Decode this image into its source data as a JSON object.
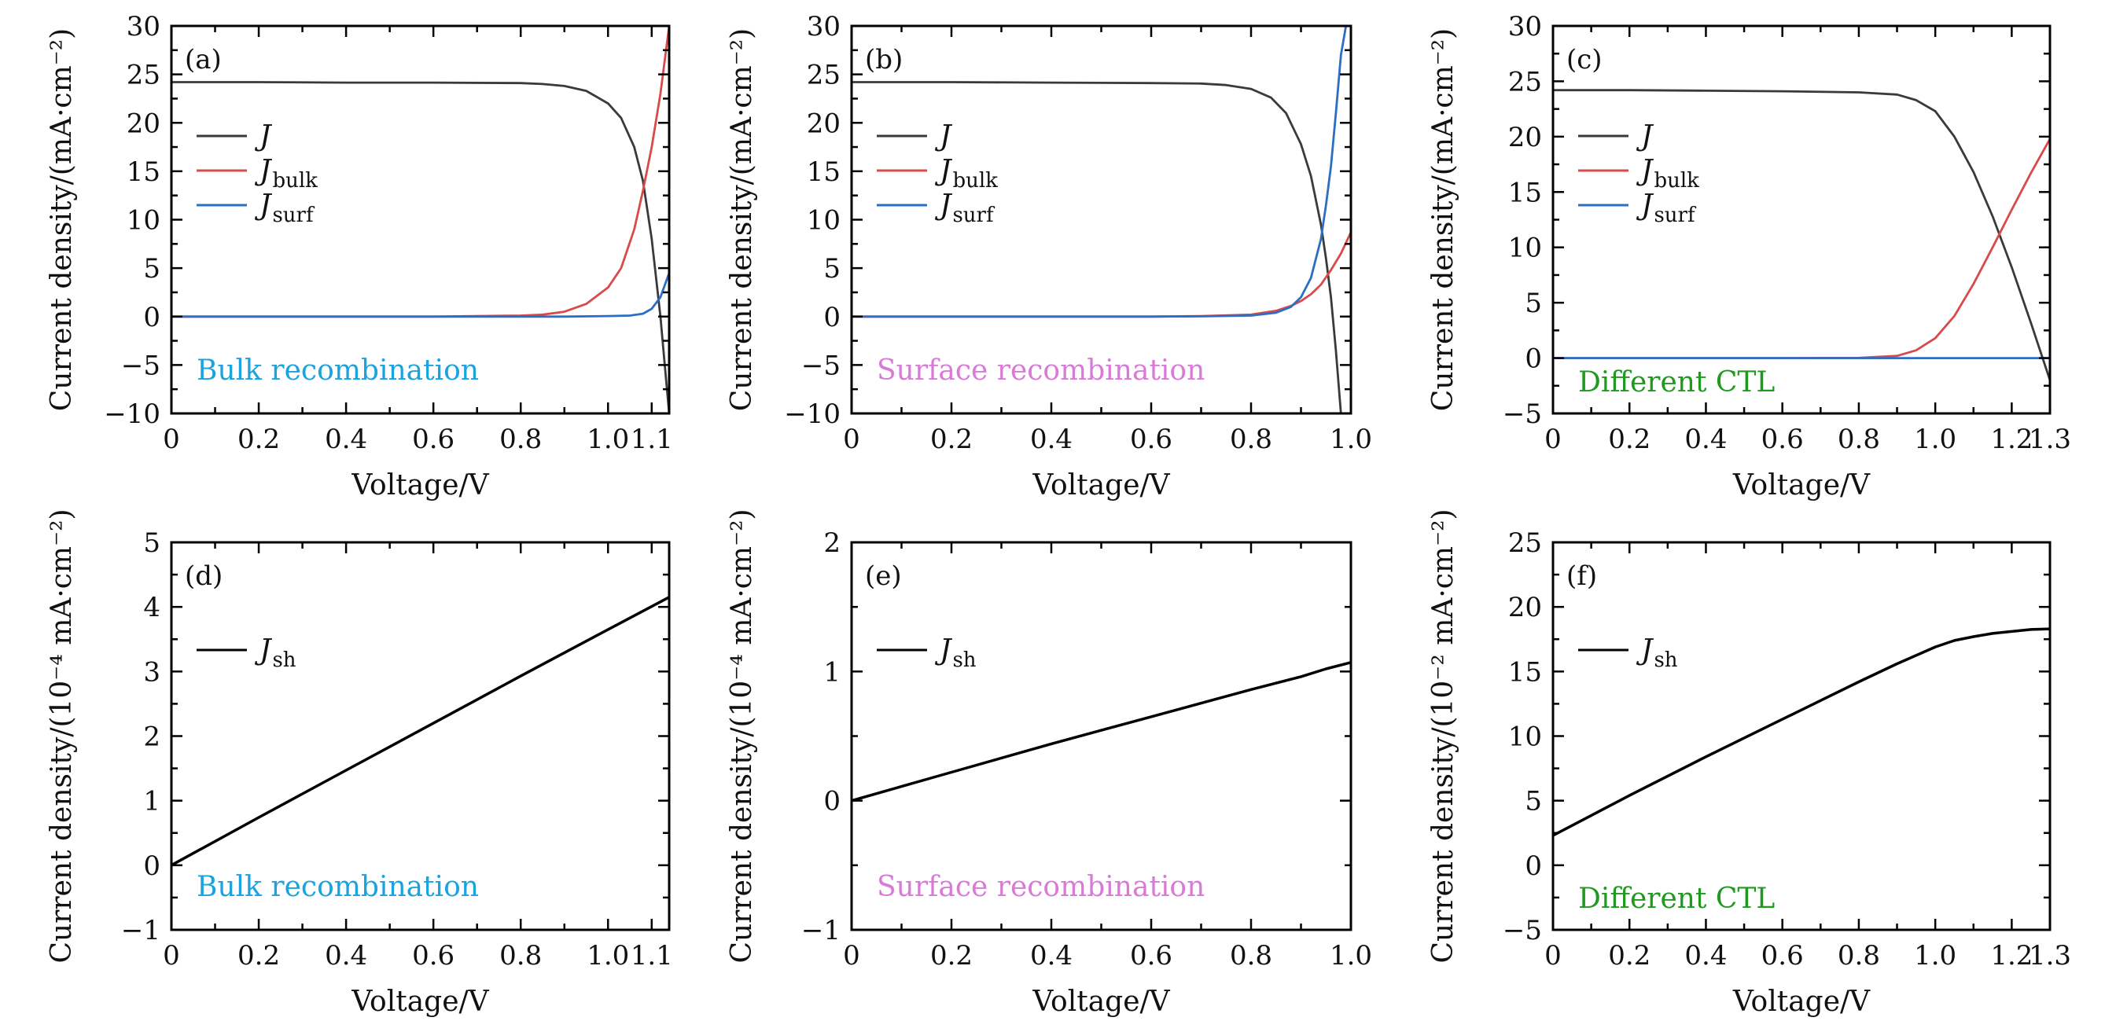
{
  "colors": {
    "J": "#3a3a3a",
    "J_bulk": "#d94a4a",
    "J_surf": "#2b6fc4",
    "J_sh": "#000000",
    "note_bulk": "#1aa3de",
    "note_surf": "#d97ad9",
    "note_ctl": "#1f9a1f"
  },
  "chart_data": [
    {
      "id": "a",
      "tag": "(a)",
      "type": "line",
      "xlabel": "Voltage/V",
      "ylabel": "Current density/(mA·cm⁻²)",
      "xlim": [
        0,
        1.14
      ],
      "ylim": [
        -10,
        30
      ],
      "xticks": [
        0,
        0.2,
        0.4,
        0.6,
        0.8,
        1.0,
        1.1
      ],
      "xtick_labels": [
        "0",
        "0.2",
        "0.4",
        "0.6",
        "0.8",
        "1.0",
        "1.1"
      ],
      "yticks": [
        -10,
        -5,
        0,
        5,
        10,
        15,
        20,
        25,
        30
      ],
      "ytick_labels": [
        "−10",
        "−5",
        "0",
        "5",
        "10",
        "15",
        "20",
        "25",
        "30"
      ],
      "note": "Bulk recombination",
      "note_color_key": "note_bulk",
      "legend": [
        {
          "main": "J",
          "sub": "",
          "color_key": "J"
        },
        {
          "main": "J",
          "sub": "bulk",
          "color_key": "J_bulk"
        },
        {
          "main": "J",
          "sub": "surf",
          "color_key": "J_surf"
        }
      ],
      "series": [
        {
          "name": "J",
          "color_key": "J",
          "x": [
            0,
            0.2,
            0.4,
            0.6,
            0.8,
            0.85,
            0.9,
            0.95,
            1.0,
            1.03,
            1.06,
            1.08,
            1.1,
            1.12,
            1.13,
            1.14
          ],
          "y": [
            24.2,
            24.2,
            24.15,
            24.15,
            24.1,
            24.0,
            23.8,
            23.3,
            22.0,
            20.5,
            17.5,
            14.0,
            8.0,
            0.0,
            -5.0,
            -10.0
          ]
        },
        {
          "name": "J_bulk",
          "color_key": "J_bulk",
          "x": [
            0,
            0.2,
            0.4,
            0.6,
            0.8,
            0.85,
            0.9,
            0.95,
            1.0,
            1.03,
            1.06,
            1.08,
            1.1,
            1.12,
            1.14
          ],
          "y": [
            0,
            0,
            0,
            0,
            0.1,
            0.2,
            0.5,
            1.3,
            3.0,
            5.0,
            9.0,
            13.0,
            17.5,
            23.0,
            30.0
          ]
        },
        {
          "name": "J_surf",
          "color_key": "J_surf",
          "x": [
            0,
            0.2,
            0.4,
            0.6,
            0.8,
            0.9,
            1.0,
            1.05,
            1.08,
            1.1,
            1.12,
            1.14
          ],
          "y": [
            0,
            0,
            0,
            0,
            0,
            0,
            0.05,
            0.1,
            0.3,
            0.8,
            2.0,
            4.5
          ]
        }
      ]
    },
    {
      "id": "b",
      "tag": "(b)",
      "type": "line",
      "xlabel": "Voltage/V",
      "ylabel": "Current density/(mA·cm⁻²)",
      "xlim": [
        0,
        1.0
      ],
      "ylim": [
        -10,
        30
      ],
      "xticks": [
        0,
        0.2,
        0.4,
        0.6,
        0.8,
        1.0
      ],
      "xtick_labels": [
        "0",
        "0.2",
        "0.4",
        "0.6",
        "0.8",
        "1.0"
      ],
      "yticks": [
        -10,
        -5,
        0,
        5,
        10,
        15,
        20,
        25,
        30
      ],
      "ytick_labels": [
        "−10",
        "−5",
        "0",
        "5",
        "10",
        "15",
        "20",
        "25",
        "30"
      ],
      "note": "Surface recombination",
      "note_color_key": "note_surf",
      "legend": [
        {
          "main": "J",
          "sub": "",
          "color_key": "J"
        },
        {
          "main": "J",
          "sub": "bulk",
          "color_key": "J_bulk"
        },
        {
          "main": "J",
          "sub": "surf",
          "color_key": "J_surf"
        }
      ],
      "series": [
        {
          "name": "J",
          "color_key": "J",
          "x": [
            0,
            0.2,
            0.4,
            0.6,
            0.7,
            0.75,
            0.8,
            0.84,
            0.87,
            0.9,
            0.92,
            0.94,
            0.95,
            0.96,
            0.97,
            0.98
          ],
          "y": [
            24.2,
            24.2,
            24.15,
            24.1,
            24.05,
            23.9,
            23.5,
            22.6,
            21.0,
            17.8,
            14.5,
            9.5,
            6.0,
            2.0,
            -3.5,
            -10.0
          ]
        },
        {
          "name": "J_bulk",
          "color_key": "J_bulk",
          "x": [
            0,
            0.2,
            0.4,
            0.6,
            0.7,
            0.8,
            0.85,
            0.88,
            0.9,
            0.92,
            0.94,
            0.96,
            0.98,
            1.0
          ],
          "y": [
            0,
            0,
            0,
            0,
            0.05,
            0.2,
            0.6,
            1.1,
            1.6,
            2.3,
            3.3,
            4.8,
            6.5,
            8.7
          ]
        },
        {
          "name": "J_surf",
          "color_key": "J_surf",
          "x": [
            0,
            0.2,
            0.4,
            0.6,
            0.7,
            0.8,
            0.85,
            0.88,
            0.9,
            0.92,
            0.94,
            0.95,
            0.96,
            0.97,
            0.98,
            0.99
          ],
          "y": [
            0,
            0,
            0,
            0,
            0.02,
            0.1,
            0.4,
            1.0,
            2.0,
            4.0,
            8.0,
            11.5,
            15.5,
            21.0,
            27.0,
            30.0
          ]
        }
      ]
    },
    {
      "id": "c",
      "tag": "(c)",
      "type": "line",
      "xlabel": "Voltage/V",
      "ylabel": "Current density/(mA·cm⁻²)",
      "xlim": [
        0,
        1.3
      ],
      "ylim": [
        -5,
        30
      ],
      "xticks": [
        0,
        0.2,
        0.4,
        0.6,
        0.8,
        1.0,
        1.2,
        1.3
      ],
      "xtick_labels": [
        "0",
        "0.2",
        "0.4",
        "0.6",
        "0.8",
        "1.0",
        "1.2",
        "1.3"
      ],
      "yticks": [
        -5,
        0,
        5,
        10,
        15,
        20,
        25,
        30
      ],
      "ytick_labels": [
        "−5",
        "0",
        "5",
        "10",
        "15",
        "20",
        "25",
        "30"
      ],
      "note": "Different CTL",
      "note_color_key": "note_ctl",
      "legend": [
        {
          "main": "J",
          "sub": "",
          "color_key": "J"
        },
        {
          "main": "J",
          "sub": "bulk",
          "color_key": "J_bulk"
        },
        {
          "main": "J",
          "sub": "surf",
          "color_key": "J_surf"
        }
      ],
      "series": [
        {
          "name": "J",
          "color_key": "J",
          "x": [
            0,
            0.2,
            0.4,
            0.6,
            0.8,
            0.9,
            0.95,
            1.0,
            1.05,
            1.1,
            1.15,
            1.2,
            1.25,
            1.3
          ],
          "y": [
            24.2,
            24.2,
            24.15,
            24.1,
            24.0,
            23.8,
            23.3,
            22.3,
            20.0,
            16.8,
            12.8,
            8.2,
            3.2,
            -2.0
          ]
        },
        {
          "name": "J_bulk",
          "color_key": "J_bulk",
          "x": [
            0,
            0.2,
            0.4,
            0.6,
            0.8,
            0.9,
            0.95,
            1.0,
            1.05,
            1.1,
            1.15,
            1.2,
            1.25,
            1.3
          ],
          "y": [
            0,
            0,
            0,
            0,
            0.02,
            0.2,
            0.7,
            1.8,
            3.8,
            6.7,
            10.0,
            13.4,
            16.7,
            19.8
          ]
        },
        {
          "name": "J_surf",
          "color_key": "J_surf",
          "x": [
            0,
            0.5,
            1.0,
            1.3
          ],
          "y": [
            0,
            0,
            0,
            0
          ]
        }
      ]
    },
    {
      "id": "d",
      "tag": "(d)",
      "type": "line",
      "xlabel": "Voltage/V",
      "ylabel": "Current density/(10⁻⁴ mA·cm⁻²)",
      "xlim": [
        0,
        1.14
      ],
      "ylim": [
        -1,
        5
      ],
      "xticks": [
        0,
        0.2,
        0.4,
        0.6,
        0.8,
        1.0,
        1.1
      ],
      "xtick_labels": [
        "0",
        "0.2",
        "0.4",
        "0.6",
        "0.8",
        "1.0",
        "1.1"
      ],
      "yticks": [
        -1,
        0,
        1,
        2,
        3,
        4,
        5
      ],
      "ytick_labels": [
        "−1",
        "0",
        "1",
        "2",
        "3",
        "4",
        "5"
      ],
      "note": "Bulk recombination",
      "note_color_key": "note_bulk",
      "legend": [
        {
          "main": "J",
          "sub": "sh",
          "color_key": "J_sh"
        }
      ],
      "series": [
        {
          "name": "J_sh",
          "color_key": "J_sh",
          "x": [
            0,
            0.2,
            0.4,
            0.6,
            0.8,
            1.0,
            1.14
          ],
          "y": [
            0.0,
            0.74,
            1.47,
            2.2,
            2.93,
            3.65,
            4.15
          ]
        }
      ]
    },
    {
      "id": "e",
      "tag": "(e)",
      "type": "line",
      "xlabel": "Voltage/V",
      "ylabel": "Current density/(10⁻⁴ mA·cm⁻²)",
      "xlim": [
        0,
        1.0
      ],
      "ylim": [
        -1,
        2
      ],
      "xticks": [
        0,
        0.2,
        0.4,
        0.6,
        0.8,
        1.0
      ],
      "xtick_labels": [
        "0",
        "0.2",
        "0.4",
        "0.6",
        "0.8",
        "1.0"
      ],
      "yticks": [
        -1,
        0,
        1,
        2
      ],
      "ytick_labels": [
        "−1",
        "0",
        "1",
        "2"
      ],
      "note": "Surface recombination",
      "note_color_key": "note_surf",
      "legend": [
        {
          "main": "J",
          "sub": "sh",
          "color_key": "J_sh"
        }
      ],
      "series": [
        {
          "name": "J_sh",
          "color_key": "J_sh",
          "x": [
            0,
            0.2,
            0.4,
            0.6,
            0.8,
            0.9,
            0.95,
            1.0
          ],
          "y": [
            0.0,
            0.22,
            0.44,
            0.65,
            0.86,
            0.96,
            1.02,
            1.07
          ]
        }
      ]
    },
    {
      "id": "f",
      "tag": "(f)",
      "type": "line",
      "xlabel": "Voltage/V",
      "ylabel": "Current density/(10⁻² mA·cm⁻²)",
      "xlim": [
        0,
        1.3
      ],
      "ylim": [
        -5,
        25
      ],
      "xticks": [
        0,
        0.2,
        0.4,
        0.6,
        0.8,
        1.0,
        1.2,
        1.3
      ],
      "xtick_labels": [
        "0",
        "0.2",
        "0.4",
        "0.6",
        "0.8",
        "1.0",
        "1.2",
        "1.3"
      ],
      "yticks": [
        -5,
        0,
        5,
        10,
        15,
        20,
        25
      ],
      "ytick_labels": [
        "−5",
        "0",
        "5",
        "10",
        "15",
        "20",
        "25"
      ],
      "note": "Different CTL",
      "note_color_key": "note_ctl",
      "legend": [
        {
          "main": "J",
          "sub": "sh",
          "color_key": "J_sh"
        }
      ],
      "series": [
        {
          "name": "J_sh",
          "color_key": "J_sh",
          "x": [
            0,
            0.2,
            0.4,
            0.6,
            0.8,
            0.9,
            1.0,
            1.05,
            1.1,
            1.15,
            1.2,
            1.25,
            1.3
          ],
          "y": [
            2.3,
            5.4,
            8.4,
            11.3,
            14.2,
            15.6,
            16.9,
            17.4,
            17.7,
            17.95,
            18.1,
            18.25,
            18.3
          ]
        }
      ]
    }
  ]
}
